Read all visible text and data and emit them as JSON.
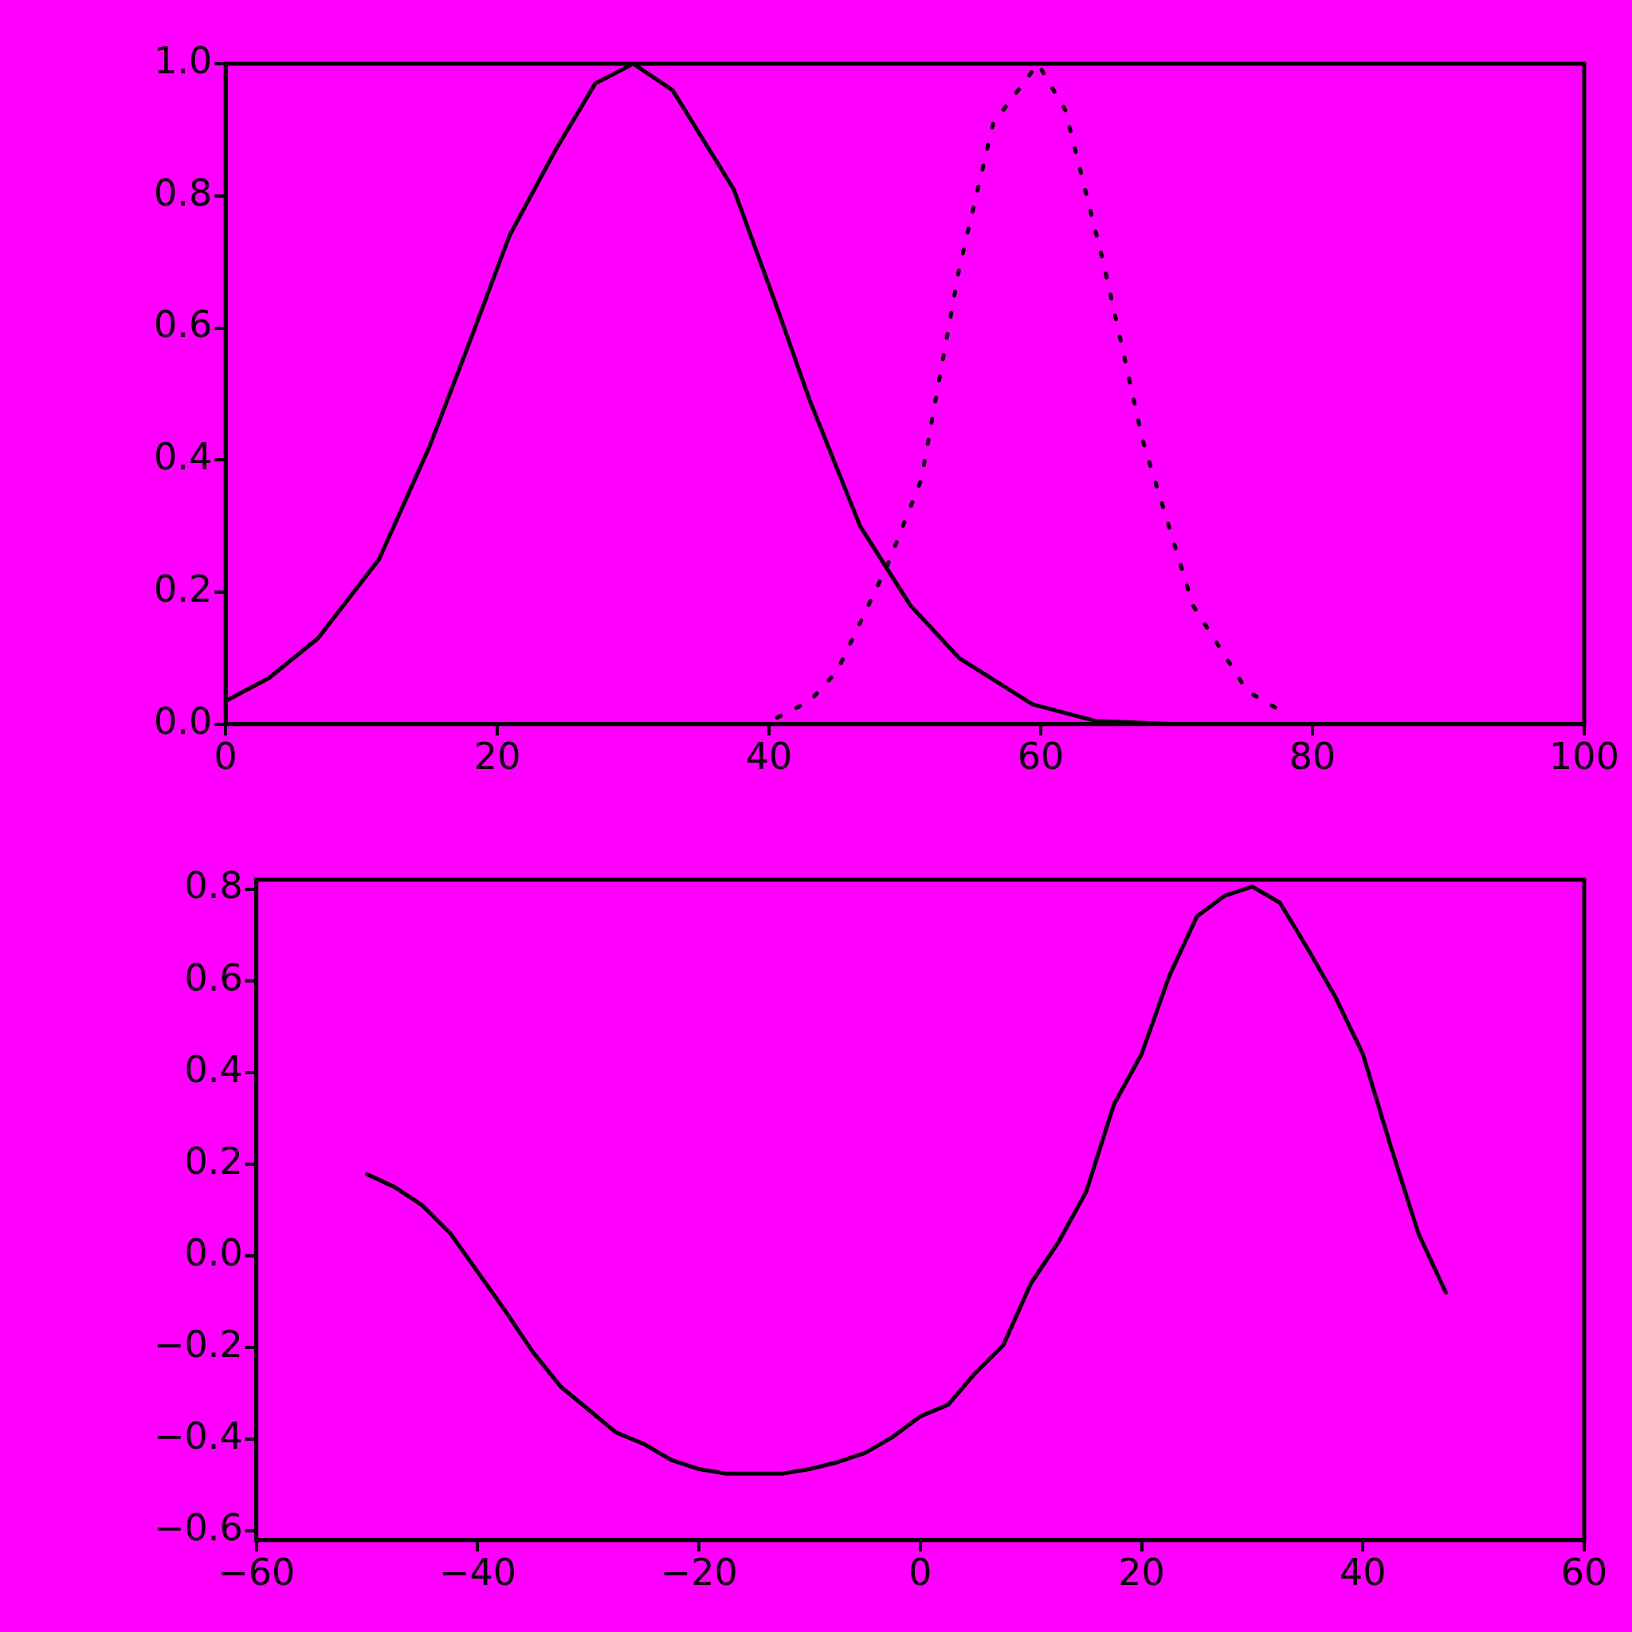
{
  "chart_data": [
    {
      "type": "line",
      "xlim": [
        0,
        100
      ],
      "xticks": [
        0,
        20,
        40,
        60,
        80,
        100
      ],
      "ylim": [
        0,
        1
      ],
      "yticks": [
        {
          "value": 0,
          "label": "0.0"
        },
        {
          "value": 0.2,
          "label": "0.2"
        },
        {
          "value": 0.4,
          "label": "0.4"
        },
        {
          "value": 0.6,
          "label": "0.6"
        },
        {
          "value": 0.8,
          "label": "0.8"
        },
        {
          "value": 1,
          "label": "1.0"
        }
      ],
      "grid": false,
      "legend": false,
      "marker": "none",
      "series": [
        {
          "color": "#000000",
          "line_style": "solid",
          "x": [
            0,
            3.2,
            6.8,
            11.3,
            15,
            17.8,
            20.9,
            24.3,
            27.2,
            30,
            32.9,
            37.4,
            40.6,
            43,
            46.7,
            50.4,
            54,
            59.4,
            64,
            70,
            100
          ],
          "values": [
            0.035,
            0.07,
            0.13,
            0.25,
            0.42,
            0.57,
            0.74,
            0.87,
            0.97,
            1.0,
            0.96,
            0.81,
            0.63,
            0.49,
            0.3,
            0.18,
            0.1,
            0.03,
            0.005,
            0,
            0
          ]
        },
        {
          "color": "#000000",
          "line_style": "dotted",
          "x": [
            40.6,
            43,
            45,
            48.7,
            51.2,
            54,
            56.5,
            59.8,
            61.8,
            64.6,
            67.5,
            71.2,
            75.2,
            77.7
          ],
          "values": [
            0.01,
            0.035,
            0.08,
            0.24,
            0.37,
            0.69,
            0.91,
            1.0,
            0.93,
            0.7,
            0.43,
            0.18,
            0.05,
            0.02
          ]
        }
      ]
    },
    {
      "type": "line",
      "xlim": [
        -60,
        60
      ],
      "xticks": [
        {
          "value": -60,
          "label": "−60"
        },
        {
          "value": -40,
          "label": "−40"
        },
        {
          "value": -20,
          "label": "−20"
        },
        0,
        20,
        40,
        60
      ],
      "ylim": [
        -0.62,
        0.82
      ],
      "yticks": [
        {
          "value": -0.6,
          "label": "−0.6"
        },
        {
          "value": -0.4,
          "label": "−0.4"
        },
        {
          "value": -0.2,
          "label": "−0.2"
        },
        {
          "value": 0,
          "label": "0.0"
        },
        {
          "value": 0.2,
          "label": "0.2"
        },
        {
          "value": 0.4,
          "label": "0.4"
        },
        {
          "value": 0.6,
          "label": "0.6"
        },
        {
          "value": 0.8,
          "label": "0.8"
        }
      ],
      "grid": false,
      "legend": false,
      "marker": "none",
      "series": [
        {
          "color": "#000000",
          "line_style": "solid",
          "x": [
            -50,
            -47.5,
            -45,
            -42.5,
            -40,
            -37.5,
            -35,
            -32.5,
            -30,
            -27.5,
            -25,
            -22.5,
            -20,
            -17.5,
            -15,
            -12.5,
            -10,
            -7.5,
            -5,
            -2.5,
            0,
            2.5,
            5,
            7.5,
            10,
            12.5,
            15,
            17.5,
            20,
            22.5,
            25,
            27.5,
            30,
            32.5,
            35,
            37.5,
            40,
            42.5,
            45,
            47.5
          ],
          "values": [
            0.178,
            0.15,
            0.11,
            0.05,
            -0.035,
            -0.12,
            -0.21,
            -0.285,
            -0.335,
            -0.385,
            -0.41,
            -0.445,
            -0.465,
            -0.475,
            -0.475,
            -0.475,
            -0.465,
            -0.45,
            -0.43,
            -0.395,
            -0.35,
            -0.325,
            -0.255,
            -0.195,
            -0.06,
            0.03,
            0.14,
            0.33,
            0.44,
            0.61,
            0.74,
            0.785,
            0.805,
            0.77,
            0.67,
            0.565,
            0.44,
            0.24,
            0.05,
            -0.08
          ]
        }
      ]
    }
  ]
}
